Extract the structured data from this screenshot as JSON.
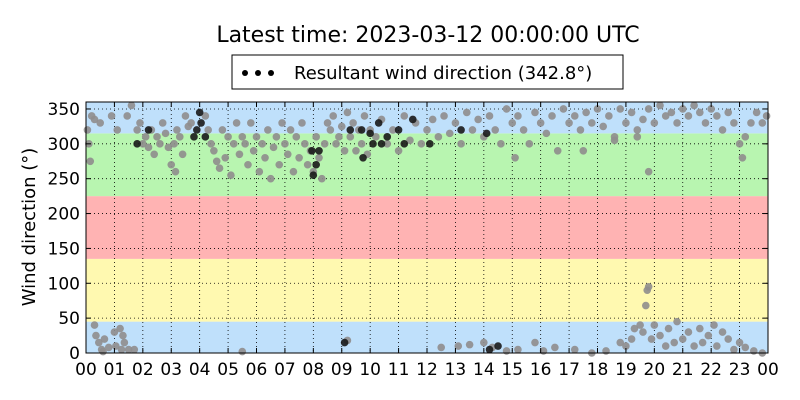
{
  "chart_data": {
    "type": "scatter",
    "title": "Latest time: 2023-03-12 00:00:00 UTC",
    "xlabel": "",
    "ylabel": "Wind direction (°)",
    "xlim": [
      0,
      24
    ],
    "ylim": [
      0,
      360
    ],
    "x_ticks": [
      "00",
      "01",
      "02",
      "03",
      "04",
      "05",
      "06",
      "07",
      "08",
      "09",
      "10",
      "11",
      "12",
      "13",
      "14",
      "15",
      "16",
      "17",
      "18",
      "19",
      "20",
      "21",
      "22",
      "23",
      "00"
    ],
    "y_ticks": [
      0,
      50,
      100,
      150,
      200,
      250,
      300,
      350
    ],
    "grid": true,
    "legend": {
      "placement": "top-center",
      "entries": [
        "Resultant wind direction (342.8°)"
      ]
    },
    "bands": [
      {
        "from": 0,
        "to": 45,
        "color": "#bfe0fb"
      },
      {
        "from": 45,
        "to": 135,
        "color": "#fff9b0"
      },
      {
        "from": 135,
        "to": 225,
        "color": "#ffb3b3"
      },
      {
        "from": 225,
        "to": 315,
        "color": "#b8f5b0"
      },
      {
        "from": 315,
        "to": 360,
        "color": "#bfe0fb"
      }
    ],
    "series": [
      {
        "color": "#8f8d8d",
        "points": [
          [
            0.05,
            320
          ],
          [
            0.1,
            300
          ],
          [
            0.15,
            275
          ],
          [
            0.2,
            340
          ],
          [
            0.3,
            335
          ],
          [
            0.35,
            25
          ],
          [
            0.45,
            15
          ],
          [
            0.5,
            330
          ],
          [
            0.55,
            5
          ],
          [
            0.65,
            20
          ],
          [
            0.8,
            8
          ],
          [
            0.9,
            340
          ],
          [
            1.0,
            30
          ],
          [
            1.05,
            10
          ],
          [
            1.1,
            320
          ],
          [
            1.2,
            35
          ],
          [
            1.3,
            25
          ],
          [
            1.45,
            340
          ],
          [
            1.5,
            5
          ],
          [
            1.6,
            355
          ],
          [
            1.7,
            5
          ],
          [
            1.8,
            320
          ],
          [
            1.9,
            330
          ],
          [
            2.0,
            300
          ],
          [
            2.1,
            310
          ],
          [
            2.2,
            295
          ],
          [
            2.3,
            320
          ],
          [
            2.4,
            285
          ],
          [
            2.5,
            310
          ],
          [
            2.6,
            300
          ],
          [
            2.7,
            330
          ],
          [
            2.8,
            315
          ],
          [
            2.9,
            295
          ],
          [
            3.0,
            270
          ],
          [
            3.1,
            300
          ],
          [
            3.15,
            260
          ],
          [
            3.2,
            320
          ],
          [
            3.3,
            310
          ],
          [
            3.4,
            285
          ],
          [
            3.5,
            340
          ],
          [
            3.6,
            325
          ],
          [
            3.7,
            330
          ],
          [
            4.2,
            340
          ],
          [
            4.3,
            320
          ],
          [
            4.4,
            300
          ],
          [
            4.5,
            290
          ],
          [
            4.6,
            275
          ],
          [
            4.7,
            265
          ],
          [
            4.8,
            320
          ],
          [
            4.9,
            280
          ],
          [
            5.0,
            310
          ],
          [
            5.1,
            255
          ],
          [
            5.2,
            300
          ],
          [
            5.3,
            330
          ],
          [
            5.4,
            285
          ],
          [
            5.5,
            310
          ],
          [
            5.6,
            300
          ],
          [
            5.7,
            270
          ],
          [
            5.8,
            330
          ],
          [
            5.9,
            290
          ],
          [
            6.0,
            310
          ],
          [
            6.1,
            260
          ],
          [
            6.2,
            300
          ],
          [
            6.3,
            280
          ],
          [
            6.4,
            320
          ],
          [
            6.5,
            250
          ],
          [
            6.6,
            295
          ],
          [
            6.7,
            310
          ],
          [
            6.8,
            270
          ],
          [
            6.9,
            330
          ],
          [
            7.0,
            300
          ],
          [
            7.1,
            285
          ],
          [
            7.2,
            320
          ],
          [
            7.3,
            260
          ],
          [
            7.4,
            310
          ],
          [
            7.5,
            280
          ],
          [
            7.6,
            330
          ],
          [
            7.7,
            300
          ],
          [
            7.8,
            270
          ],
          [
            7.9,
            290
          ],
          [
            8.0,
            260
          ],
          [
            8.1,
            310
          ],
          [
            8.2,
            280
          ],
          [
            8.3,
            250
          ],
          [
            8.4,
            300
          ],
          [
            8.5,
            330
          ],
          [
            8.6,
            320
          ],
          [
            8.7,
            340
          ],
          [
            8.8,
            300
          ],
          [
            8.9,
            310
          ],
          [
            9.0,
            325
          ],
          [
            9.1,
            290
          ],
          [
            9.2,
            345
          ],
          [
            9.3,
            310
          ],
          [
            9.4,
            330
          ],
          [
            9.5,
            290
          ],
          [
            9.6,
            320
          ],
          [
            9.7,
            300
          ],
          [
            9.8,
            340
          ],
          [
            9.9,
            285
          ],
          [
            10.0,
            320
          ],
          [
            10.2,
            310
          ],
          [
            10.4,
            335
          ],
          [
            10.6,
            300
          ],
          [
            10.8,
            320
          ],
          [
            11.0,
            290
          ],
          [
            11.2,
            340
          ],
          [
            11.4,
            305
          ],
          [
            11.6,
            330
          ],
          [
            11.8,
            300
          ],
          [
            12.0,
            320
          ],
          [
            12.2,
            335
          ],
          [
            12.4,
            310
          ],
          [
            12.6,
            340
          ],
          [
            12.8,
            315
          ],
          [
            13.0,
            330
          ],
          [
            13.2,
            300
          ],
          [
            13.4,
            345
          ],
          [
            13.6,
            320
          ],
          [
            13.8,
            335
          ],
          [
            14.0,
            310
          ],
          [
            14.2,
            340
          ],
          [
            14.4,
            320
          ],
          [
            14.6,
            300
          ],
          [
            14.8,
            350
          ],
          [
            15.0,
            330
          ],
          [
            15.1,
            280
          ],
          [
            15.2,
            340
          ],
          [
            15.4,
            320
          ],
          [
            15.6,
            300
          ],
          [
            15.8,
            345
          ],
          [
            16.0,
            330
          ],
          [
            16.2,
            315
          ],
          [
            16.4,
            340
          ],
          [
            16.6,
            290
          ],
          [
            16.8,
            350
          ],
          [
            17.0,
            330
          ],
          [
            17.2,
            340
          ],
          [
            17.4,
            320
          ],
          [
            17.6,
            345
          ],
          [
            17.8,
            330
          ],
          [
            18.0,
            350
          ],
          [
            18.2,
            325
          ],
          [
            18.4,
            340
          ],
          [
            18.6,
            310
          ],
          [
            18.8,
            350
          ],
          [
            19.0,
            330
          ],
          [
            19.2,
            345
          ],
          [
            19.4,
            320
          ],
          [
            19.6,
            335
          ],
          [
            19.8,
            350
          ],
          [
            20.0,
            330
          ],
          [
            20.2,
            355
          ],
          [
            20.4,
            340
          ],
          [
            20.6,
            345
          ],
          [
            20.8,
            330
          ],
          [
            21.0,
            350
          ],
          [
            21.2,
            340
          ],
          [
            21.4,
            355
          ],
          [
            21.6,
            345
          ],
          [
            21.8,
            330
          ],
          [
            22.0,
            350
          ],
          [
            22.2,
            340
          ],
          [
            22.4,
            320
          ],
          [
            22.6,
            345
          ],
          [
            22.8,
            330
          ],
          [
            23.0,
            300
          ],
          [
            23.1,
            280
          ],
          [
            23.2,
            310
          ],
          [
            23.4,
            330
          ],
          [
            23.6,
            345
          ],
          [
            23.8,
            330
          ],
          [
            23.95,
            340
          ],
          [
            0.3,
            40
          ],
          [
            0.6,
            2
          ],
          [
            1.25,
            5
          ],
          [
            1.35,
            15
          ],
          [
            5.5,
            2
          ],
          [
            9.2,
            18
          ],
          [
            12.5,
            8
          ],
          [
            13.1,
            10
          ],
          [
            13.5,
            12
          ],
          [
            14.0,
            15
          ],
          [
            14.3,
            8
          ],
          [
            14.8,
            3
          ],
          [
            15.2,
            5
          ],
          [
            15.8,
            15
          ],
          [
            16.1,
            3
          ],
          [
            16.5,
            8
          ],
          [
            17.2,
            5
          ],
          [
            17.8,
            0
          ],
          [
            18.3,
            3
          ],
          [
            18.8,
            15
          ],
          [
            19.0,
            10
          ],
          [
            19.2,
            20
          ],
          [
            19.3,
            35
          ],
          [
            19.5,
            40
          ],
          [
            19.6,
            30
          ],
          [
            19.7,
            68
          ],
          [
            19.75,
            90
          ],
          [
            19.8,
            95
          ],
          [
            19.9,
            20
          ],
          [
            20.0,
            40
          ],
          [
            20.2,
            25
          ],
          [
            20.4,
            10
          ],
          [
            20.5,
            35
          ],
          [
            20.7,
            15
          ],
          [
            20.8,
            45
          ],
          [
            21.0,
            20
          ],
          [
            21.2,
            30
          ],
          [
            21.4,
            10
          ],
          [
            21.6,
            35
          ],
          [
            21.7,
            15
          ],
          [
            21.9,
            25
          ],
          [
            22.1,
            40
          ],
          [
            22.2,
            10
          ],
          [
            22.4,
            30
          ],
          [
            22.6,
            20
          ],
          [
            22.8,
            5
          ],
          [
            23.0,
            15
          ],
          [
            23.2,
            8
          ],
          [
            23.5,
            3
          ],
          [
            23.8,
            0
          ],
          [
            19.8,
            260
          ],
          [
            17.5,
            290
          ],
          [
            18.6,
            305
          ],
          [
            19.4,
            310
          ]
        ]
      },
      {
        "color": "#1a1a1a",
        "points": [
          [
            3.9,
            320
          ],
          [
            4.0,
            345
          ],
          [
            4.05,
            330
          ],
          [
            3.8,
            310
          ],
          [
            8.0,
            255
          ],
          [
            8.1,
            270
          ],
          [
            7.95,
            290
          ],
          [
            9.1,
            15
          ],
          [
            9.7,
            320
          ],
          [
            9.75,
            280
          ],
          [
            10.0,
            315
          ],
          [
            10.1,
            300
          ],
          [
            10.3,
            330
          ],
          [
            10.4,
            300
          ],
          [
            10.6,
            310
          ],
          [
            11.0,
            320
          ],
          [
            11.2,
            300
          ],
          [
            11.5,
            335
          ],
          [
            12.1,
            300
          ],
          [
            13.2,
            320
          ],
          [
            14.1,
            315
          ],
          [
            14.2,
            5
          ],
          [
            14.5,
            10
          ],
          [
            8.2,
            290
          ],
          [
            9.3,
            320
          ],
          [
            2.2,
            320
          ],
          [
            1.8,
            300
          ],
          [
            4.2,
            310
          ]
        ]
      }
    ]
  }
}
